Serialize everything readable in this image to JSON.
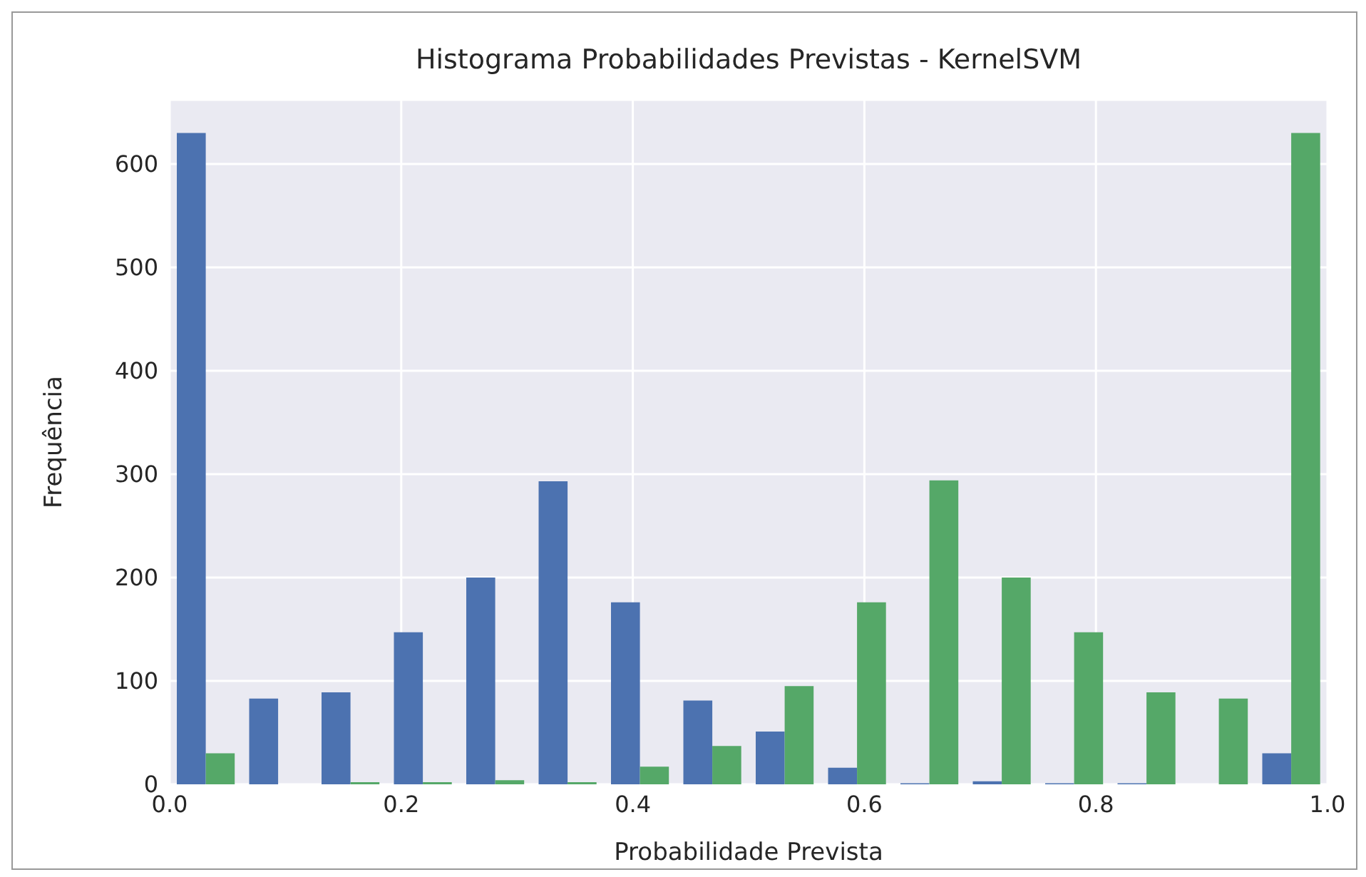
{
  "chart_data": {
    "type": "histogram",
    "title": "Histograma Probabilidades Previstas - KernelSVM",
    "xlabel": "Probabilidade Prevista",
    "ylabel": "Frequência",
    "bins": [
      0,
      0.0625,
      0.125,
      0.1875,
      0.25,
      0.3125,
      0.375,
      0.4375,
      0.5,
      0.5625,
      0.625,
      0.6875,
      0.75,
      0.8125,
      0.875,
      0.9375,
      1
    ],
    "series": [
      {
        "color": "#4c72b0",
        "values": [
          630,
          83,
          89,
          147,
          200,
          293,
          176,
          81,
          51,
          16,
          1,
          3,
          1,
          1,
          0,
          30
        ]
      },
      {
        "color": "#55a868",
        "values": [
          30,
          0,
          2,
          2,
          4,
          2,
          17,
          37,
          95,
          176,
          294,
          200,
          147,
          89,
          83,
          630
        ]
      }
    ],
    "xlim": [
      0,
      1
    ],
    "xticks": [
      {
        "value": 0,
        "label": "0.0"
      },
      {
        "value": 0.2,
        "label": "0.2"
      },
      {
        "value": 0.4,
        "label": "0.4"
      },
      {
        "value": 0.6,
        "label": "0.6"
      },
      {
        "value": 0.8,
        "label": "0.8"
      },
      {
        "value": 1,
        "label": "1.0"
      }
    ],
    "ylim": [
      0,
      662
    ],
    "yticks": [
      0,
      100,
      200,
      300,
      400,
      500,
      600
    ],
    "grid": true
  }
}
